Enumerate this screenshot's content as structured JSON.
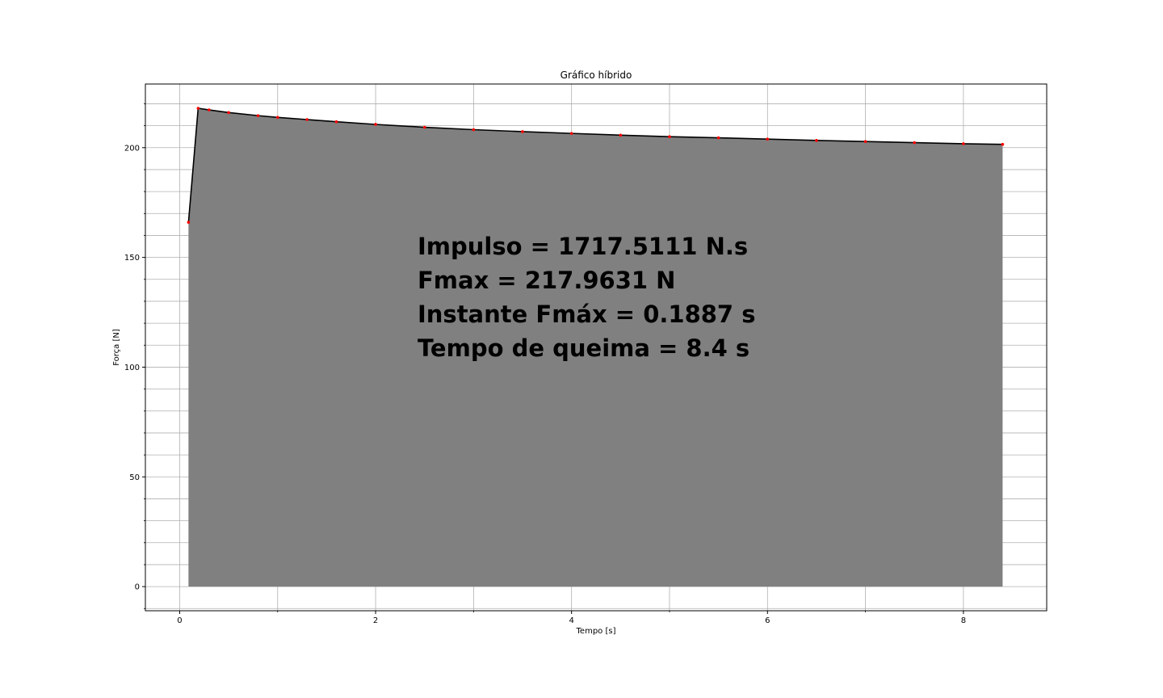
{
  "chart_data": {
    "type": "area",
    "title": "Gráfico híbrido",
    "xlabel": "Tempo [s]",
    "ylabel": "Força [N]",
    "xlim": [
      -0.35,
      8.85
    ],
    "ylim": [
      -11,
      229
    ],
    "xticks": [
      0,
      2,
      4,
      6,
      8
    ],
    "yticks": [
      0,
      50,
      100,
      150,
      200
    ],
    "grid": true,
    "colors": {
      "fill": "#808080",
      "line": "#000000",
      "marker": "#ff0000",
      "grid": "#b0b0b0"
    },
    "series": [
      {
        "x": [
          0.09,
          0.1887,
          0.3,
          0.5,
          0.8,
          1.0,
          1.3,
          1.6,
          2.0,
          2.5,
          3.0,
          3.5,
          4.0,
          4.5,
          5.0,
          5.5,
          6.0,
          6.5,
          7.0,
          7.5,
          8.0,
          8.4
        ],
        "y": [
          166.0,
          217.96,
          217.2,
          216.0,
          214.6,
          213.8,
          212.8,
          211.8,
          210.6,
          209.3,
          208.2,
          207.3,
          206.5,
          205.7,
          205.0,
          204.5,
          203.9,
          203.3,
          202.8,
          202.3,
          201.8,
          201.5
        ]
      }
    ],
    "annotations": [
      "Impulso = 1717.5111 N.s",
      "Fmax = 217.9631 N",
      "Instante Fmáx = 0.1887 s",
      "Tempo de queima = 8.4 s"
    ]
  }
}
